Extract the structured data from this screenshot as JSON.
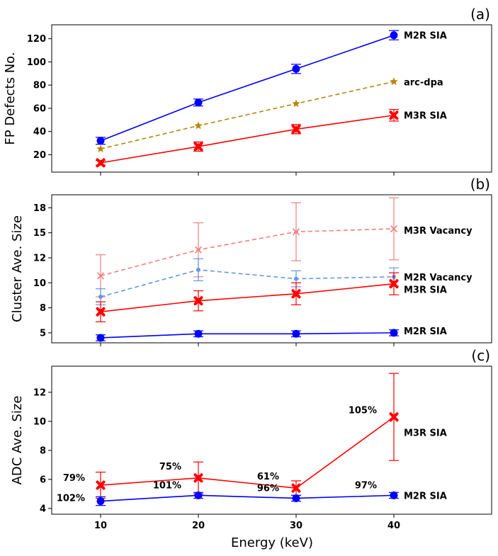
{
  "figure": {
    "xlabel": "Energy (keV)",
    "xticks": [
      "10",
      "20",
      "30",
      "40"
    ]
  },
  "chart_data": [
    {
      "type": "line",
      "panel_label": "(a)",
      "ylabel": "FP Defects No.",
      "x": [
        10,
        20,
        30,
        40
      ],
      "xlim": [
        5,
        50
      ],
      "ylim": [
        5,
        132
      ],
      "yticks": [
        20,
        40,
        60,
        80,
        100,
        120
      ],
      "series": [
        {
          "name": "M2R SIA",
          "label": "M2R SIA",
          "values": [
            32,
            65,
            94,
            123
          ],
          "errors": [
            3,
            3,
            4,
            4
          ],
          "color": "#0000ff",
          "dashed": false,
          "marker": "circle"
        },
        {
          "name": "arc-dpa",
          "label": "arc-dpa",
          "values": [
            25,
            45,
            64,
            83
          ],
          "errors": null,
          "color": "#b8860b",
          "dashed": true,
          "marker": "star"
        },
        {
          "name": "M3R SIA",
          "label": "M3R SIA",
          "values": [
            13,
            27,
            42,
            54
          ],
          "errors": [
            2,
            4,
            4,
            5
          ],
          "color": "#ff0000",
          "dashed": false,
          "marker": "x-filled"
        }
      ]
    },
    {
      "type": "line",
      "panel_label": "(b)",
      "ylabel": "Cluster Ave. Size",
      "x": [
        10,
        20,
        30,
        40
      ],
      "xlim": [
        5,
        50
      ],
      "ylim": [
        4.0,
        18.8
      ],
      "yticks": [
        5,
        8,
        10,
        12,
        15,
        18
      ],
      "ytick_values": [
        5,
        7.5,
        10,
        12.5,
        15,
        17.5
      ],
      "series": [
        {
          "name": "M3R Vacancy",
          "label": "M3R Vacancy",
          "values": [
            10.7,
            13.3,
            15.1,
            15.4
          ],
          "errors": [
            2.1,
            2.7,
            2.9,
            3.1
          ],
          "color": "#f08080",
          "dashed": true,
          "marker": "x"
        },
        {
          "name": "M2R Vacancy",
          "label": "M2R Vacancy",
          "values": [
            8.6,
            11.3,
            10.4,
            10.6
          ],
          "errors": [
            0.8,
            1.1,
            0.8,
            0.9
          ],
          "color": "#6495ed",
          "dashed": true,
          "marker": "dot"
        },
        {
          "name": "M3R SIA",
          "label": "M3R SIA",
          "values": [
            7.1,
            8.2,
            8.9,
            9.9
          ],
          "errors": [
            1.0,
            1.0,
            1.1,
            1.1
          ],
          "color": "#ff0000",
          "dashed": false,
          "marker": "x-filled"
        },
        {
          "name": "M2R SIA",
          "label": "M2R SIA",
          "values": [
            4.5,
            4.9,
            4.9,
            5.0
          ],
          "errors": [
            0.3,
            0.3,
            0.3,
            0.3
          ],
          "color": "#0000ff",
          "dashed": false,
          "marker": "circle"
        }
      ]
    },
    {
      "type": "line",
      "panel_label": "(c)",
      "ylabel": "ADC Ave. Size",
      "x": [
        10,
        20,
        30,
        40
      ],
      "xlim": [
        5,
        50
      ],
      "ylim": [
        3.6,
        13.8
      ],
      "yticks": [
        4,
        6,
        8,
        10,
        12
      ],
      "series": [
        {
          "name": "M3R SIA",
          "label": "M3R SIA",
          "values": [
            5.6,
            6.1,
            5.4,
            10.3
          ],
          "errors": [
            0.9,
            1.1,
            0.5,
            3.0
          ],
          "color": "#ff0000",
          "dashed": false,
          "marker": "x-filled"
        },
        {
          "name": "M2R SIA",
          "label": "M2R SIA",
          "values": [
            4.5,
            4.9,
            4.7,
            4.9
          ],
          "errors": [
            0.3,
            0.2,
            0.2,
            0.2
          ],
          "color": "#0000ff",
          "dashed": false,
          "marker": "circle"
        }
      ],
      "annotations": [
        {
          "text": "79%",
          "x": 10,
          "series": "M3R SIA"
        },
        {
          "text": "75%",
          "x": 20,
          "series": "M3R SIA"
        },
        {
          "text": "61%",
          "x": 30,
          "series": "M3R SIA"
        },
        {
          "text": "105%",
          "x": 40,
          "series": "M3R SIA"
        },
        {
          "text": "102%",
          "x": 10,
          "series": "M2R SIA"
        },
        {
          "text": "101%",
          "x": 20,
          "series": "M2R SIA"
        },
        {
          "text": "96%",
          "x": 30,
          "series": "M2R SIA"
        },
        {
          "text": "97%",
          "x": 40,
          "series": "M2R SIA"
        }
      ]
    }
  ]
}
